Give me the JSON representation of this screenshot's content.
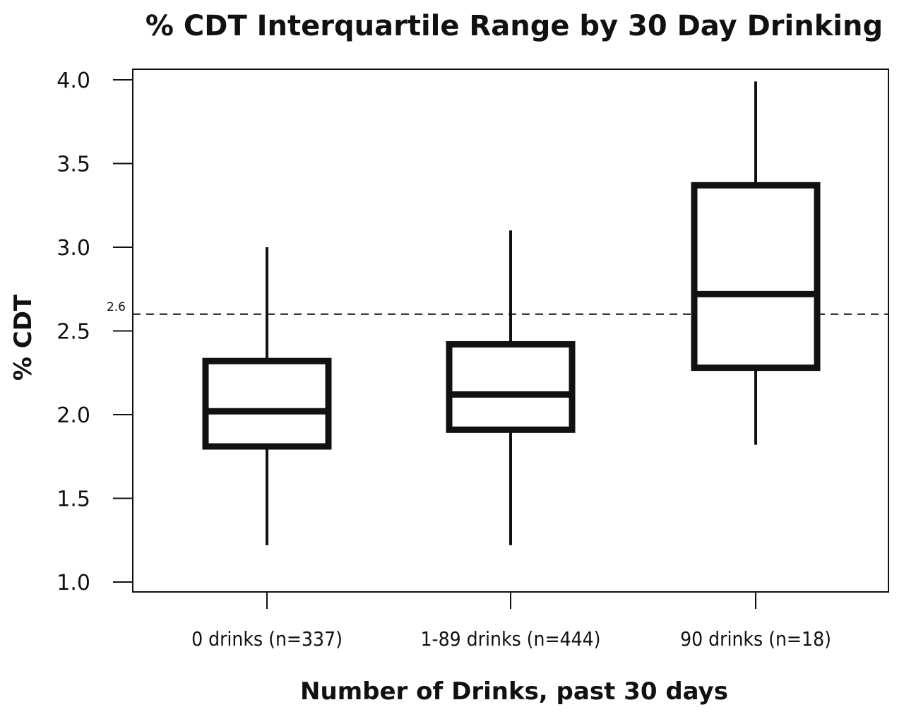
{
  "chart_data": {
    "type": "box",
    "title": "% CDT Interquartile Range by 30 Day Drinking",
    "xlabel": "Number of Drinks, past 30 days",
    "ylabel": "% CDT",
    "ylim": [
      1.0,
      4.0
    ],
    "yticks": [
      "1.0",
      "1.5",
      "2.0",
      "2.5",
      "3.0",
      "3.5",
      "4.0"
    ],
    "grid": false,
    "legend": "none",
    "reference_line": {
      "value": 2.6,
      "label": "2.6",
      "style": "dashed"
    },
    "categories": [
      "0 drinks (n=337)",
      "1-89 drinks (n=444)",
      "90 drinks (n=18)"
    ],
    "boxes": [
      {
        "whisker_low": 1.22,
        "q1": 1.81,
        "median": 2.02,
        "q3": 2.32,
        "whisker_high": 3.0
      },
      {
        "whisker_low": 1.22,
        "q1": 1.91,
        "median": 2.12,
        "q3": 2.42,
        "whisker_high": 3.1
      },
      {
        "whisker_low": 1.82,
        "q1": 2.28,
        "median": 2.72,
        "q3": 3.37,
        "whisker_high": 3.99
      }
    ],
    "colors": {
      "ink": "#111111",
      "background": "#ffffff"
    }
  }
}
